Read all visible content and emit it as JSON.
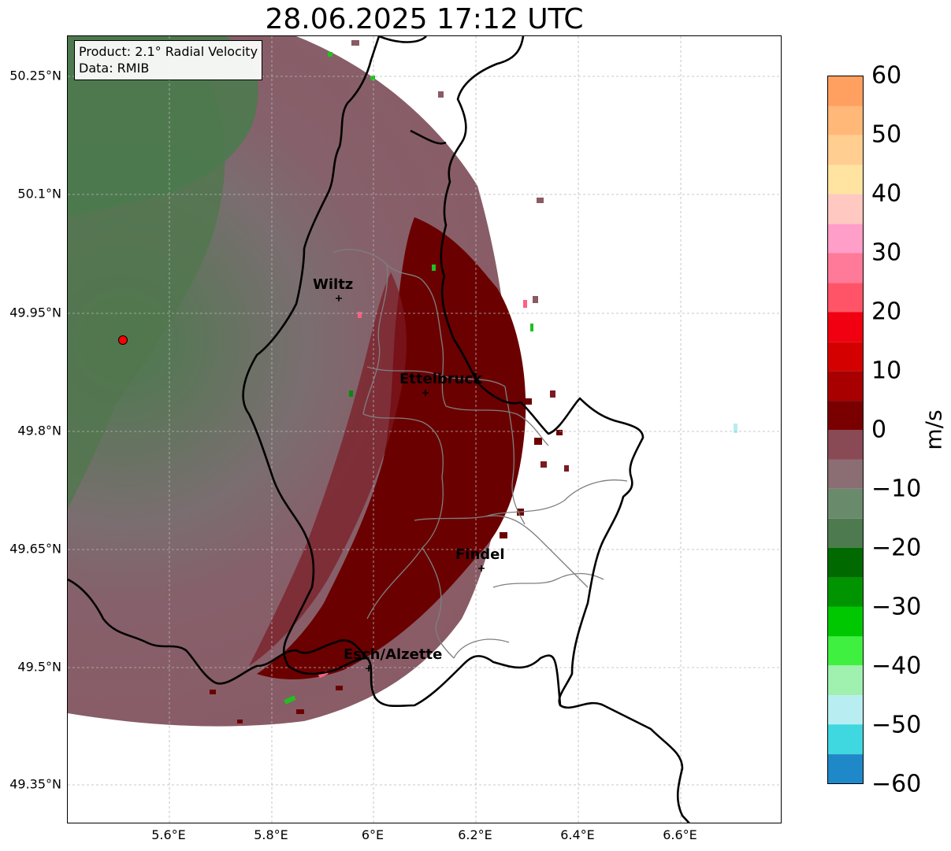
{
  "header": {
    "title": "28.06.2025 17:12 UTC"
  },
  "info": {
    "product": "Product: 2.1° Radial Velocity",
    "data_source": "Data: RMIB"
  },
  "axes": {
    "lat_labels": [
      "50.25°N",
      "50.1°N",
      "49.95°N",
      "49.8°N",
      "49.65°N",
      "49.5°N",
      "49.35°N"
    ],
    "lon_labels": [
      "5.6°E",
      "5.8°E",
      "6°E",
      "6.2°E",
      "6.4°E",
      "6.6°E"
    ]
  },
  "cities": [
    {
      "name": "Wiltz"
    },
    {
      "name": "Ettelbruck"
    },
    {
      "name": "Findel"
    },
    {
      "name": "Esch/Alzette"
    }
  ],
  "colorbar": {
    "unit": "m/s",
    "ticks": [
      "60",
      "50",
      "40",
      "30",
      "20",
      "10",
      "0",
      "−10",
      "−20",
      "−30",
      "−40",
      "−50",
      "−60"
    ],
    "range": [
      -60,
      60
    ],
    "colors": [
      "#1f78c1",
      "#2ec8d4",
      "#b3eef2",
      "#17e81c",
      "#00a000",
      "#005a00",
      "#6b8f6b",
      "#8a6e74",
      "#6e0000",
      "#f00000",
      "#ff6080",
      "#ffb0c0",
      "#ffe8a0",
      "#ffa060"
    ]
  },
  "legend_colors": {
    "approaching_green": "#2f7a35",
    "neutral_mauve": "#8c6a73",
    "receding_maroon": "#6b0000",
    "radar_site": "#ff0000"
  }
}
